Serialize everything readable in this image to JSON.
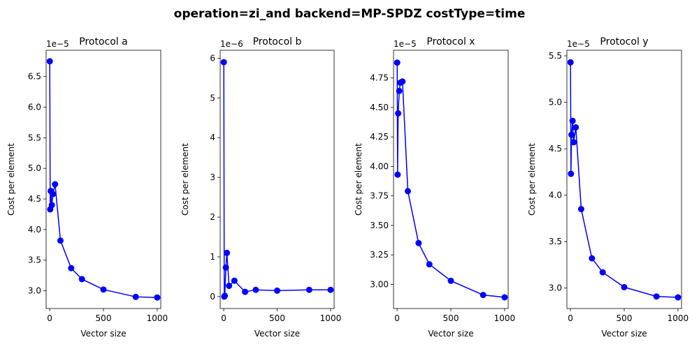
{
  "figure": {
    "suptitle": "operation=zi_and backend=MP-SPDZ costType=time",
    "series_color": "#0000ff"
  },
  "chart_data": [
    {
      "type": "line",
      "title": "Protocol a",
      "xlabel": "Vector size",
      "ylabel": "Cost per element",
      "y_offset_label": "1e−5",
      "xlim": [
        -33,
        1033
      ],
      "ylim": [
        2.71,
        6.93
      ],
      "xticks": [
        0,
        500,
        1000
      ],
      "xtick_labels": [
        "0",
        "500",
        "1000"
      ],
      "yticks": [
        3.0,
        3.5,
        4.0,
        4.5,
        5.0,
        5.5,
        6.0,
        6.5
      ],
      "ytick_labels": [
        "3.0",
        "3.5",
        "4.0",
        "4.5",
        "5.0",
        "5.5",
        "6.0",
        "6.5"
      ],
      "x": [
        1,
        5,
        10,
        20,
        30,
        50,
        100,
        200,
        300,
        500,
        800,
        1000
      ],
      "y": [
        6.75,
        4.33,
        4.63,
        4.4,
        4.58,
        4.74,
        3.82,
        3.37,
        3.19,
        3.02,
        2.9,
        2.89
      ]
    },
    {
      "type": "line",
      "title": "Protocol b",
      "xlabel": "Vector size",
      "ylabel": "Cost per element",
      "y_offset_label": "1e−6",
      "xlim": [
        -33,
        1033
      ],
      "ylim": [
        -0.3,
        6.2
      ],
      "xticks": [
        0,
        500,
        1000
      ],
      "xtick_labels": [
        "0",
        "500",
        "1000"
      ],
      "yticks": [
        0,
        1,
        2,
        3,
        4,
        5,
        6
      ],
      "ytick_labels": [
        "0",
        "1",
        "2",
        "3",
        "4",
        "5",
        "6"
      ],
      "x": [
        1,
        5,
        10,
        20,
        30,
        50,
        100,
        200,
        300,
        500,
        800,
        1000
      ],
      "y": [
        5.9,
        0.0,
        0.02,
        0.73,
        1.1,
        0.27,
        0.4,
        0.12,
        0.17,
        0.15,
        0.17,
        0.17
      ]
    },
    {
      "type": "line",
      "title": "Protocol x",
      "xlabel": "Vector size",
      "ylabel": "Cost per element",
      "y_offset_label": "1e−5",
      "xlim": [
        -33,
        1033
      ],
      "ylim": [
        2.795,
        4.985
      ],
      "xticks": [
        0,
        500,
        1000
      ],
      "xtick_labels": [
        "0",
        "500",
        "1000"
      ],
      "yticks": [
        3.0,
        3.25,
        3.5,
        3.75,
        4.0,
        4.25,
        4.5,
        4.75
      ],
      "ytick_labels": [
        "3.00",
        "3.25",
        "3.50",
        "3.75",
        "4.00",
        "4.25",
        "4.50",
        "4.75"
      ],
      "x": [
        1,
        5,
        10,
        20,
        30,
        50,
        100,
        200,
        300,
        500,
        800,
        1000
      ],
      "y": [
        4.88,
        3.93,
        4.45,
        4.64,
        4.71,
        4.72,
        3.79,
        3.35,
        3.17,
        3.03,
        2.91,
        2.89
      ]
    },
    {
      "type": "line",
      "title": "Protocol y",
      "xlabel": "Vector size",
      "ylabel": "Cost per element",
      "y_offset_label": "1e−5",
      "xlim": [
        -33,
        1033
      ],
      "ylim": [
        2.78,
        5.56
      ],
      "xticks": [
        0,
        500,
        1000
      ],
      "xtick_labels": [
        "0",
        "500",
        "1000"
      ],
      "yticks": [
        3.0,
        3.5,
        4.0,
        4.5,
        5.0,
        5.5
      ],
      "ytick_labels": [
        "3.0",
        "3.5",
        "4.0",
        "4.5",
        "5.0",
        "5.5"
      ],
      "x": [
        1,
        5,
        10,
        20,
        30,
        50,
        100,
        200,
        300,
        500,
        800,
        1000
      ],
      "y": [
        5.43,
        4.23,
        4.65,
        4.8,
        4.57,
        4.73,
        3.85,
        3.32,
        3.17,
        3.01,
        2.91,
        2.9
      ]
    }
  ]
}
